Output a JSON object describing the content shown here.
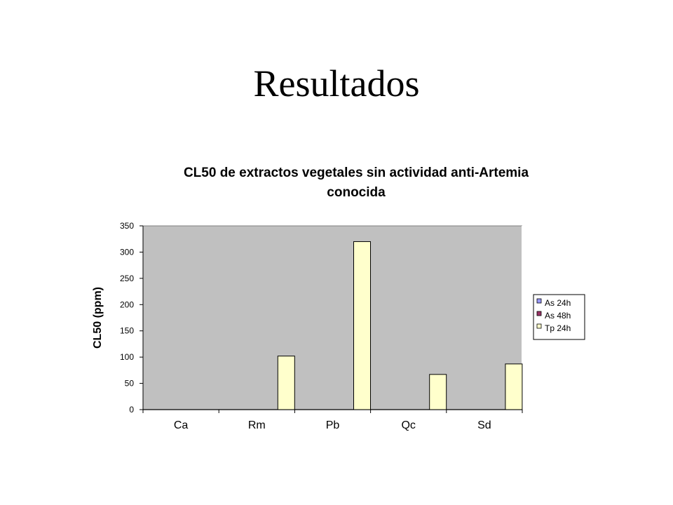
{
  "slide": {
    "title": "Resultados"
  },
  "chart_data": {
    "type": "bar",
    "title_lines": [
      "CL50 de extractos vegetales sin actividad anti-Artemia",
      "conocida"
    ],
    "xlabel": "",
    "ylabel": "CL50 (ppm)",
    "ylim": [
      0,
      350
    ],
    "yticks": [
      0,
      50,
      100,
      150,
      200,
      250,
      300,
      350
    ],
    "categories": [
      "Ca",
      "Rm",
      "Pb",
      "Qc",
      "Sd"
    ],
    "series": [
      {
        "name": "As 24h",
        "color": "#9999ff",
        "values": [
          null,
          null,
          null,
          null,
          null
        ]
      },
      {
        "name": "As 48h",
        "color": "#993366",
        "values": [
          null,
          null,
          null,
          null,
          null
        ]
      },
      {
        "name": "Tp 24h",
        "color": "#ffffcc",
        "values": [
          null,
          102,
          320,
          67,
          87
        ]
      }
    ],
    "plot_background": "#c0c0c0",
    "grid": false,
    "legend_position": "right"
  }
}
